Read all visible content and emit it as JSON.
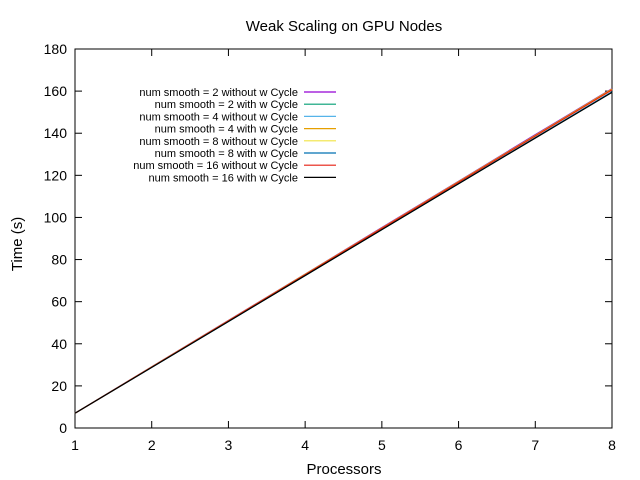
{
  "chart_data": {
    "type": "line",
    "title": "Weak Scaling on GPU Nodes",
    "xlabel": "Processors",
    "ylabel": "Time (s)",
    "xlim": [
      1,
      8
    ],
    "ylim": [
      0,
      180
    ],
    "xticks": [
      1,
      2,
      3,
      4,
      5,
      6,
      7,
      8
    ],
    "yticks": [
      0,
      20,
      40,
      60,
      80,
      100,
      120,
      140,
      160,
      180
    ],
    "grid": false,
    "legend_position": "top-left",
    "x": [
      1,
      2,
      3,
      4,
      5,
      6,
      7,
      8
    ],
    "series": [
      {
        "name": "num smooth = 2 without w Cycle",
        "color": "#9400d3",
        "values": [
          7.0,
          29.1,
          51.1,
          73.1,
          95.2,
          117.2,
          139.3,
          161.2
        ]
      },
      {
        "name": "num smooth = 2 with w Cycle",
        "color": "#009e73",
        "values": [
          7.0,
          28.8,
          50.6,
          72.4,
          94.2,
          116.0,
          137.8,
          159.5
        ]
      },
      {
        "name": "num smooth = 4 without w Cycle",
        "color": "#56b4e9",
        "values": [
          7.0,
          29.0,
          51.0,
          73.0,
          95.0,
          117.0,
          139.0,
          161.0
        ]
      },
      {
        "name": "num smooth = 4 with w Cycle",
        "color": "#e69f00",
        "values": [
          7.0,
          29.0,
          51.0,
          73.0,
          95.0,
          117.0,
          139.0,
          161.0
        ]
      },
      {
        "name": "num smooth = 8 without w Cycle",
        "color": "#f0e442",
        "values": [
          7.0,
          28.9,
          50.9,
          72.8,
          94.8,
          116.7,
          138.7,
          160.6
        ]
      },
      {
        "name": "num smooth = 8 with w Cycle",
        "color": "#0072b2",
        "values": [
          7.0,
          28.8,
          50.6,
          72.5,
          94.3,
          116.1,
          137.9,
          159.7
        ]
      },
      {
        "name": "num smooth = 16 without w Cycle",
        "color": "#e51e10",
        "values": [
          7.0,
          28.9,
          50.9,
          72.8,
          94.8,
          116.7,
          138.7,
          160.6
        ]
      },
      {
        "name": "num smooth = 16 with w Cycle",
        "color": "#000000",
        "values": [
          7.0,
          28.8,
          50.6,
          72.4,
          94.2,
          116.0,
          137.7,
          159.4
        ]
      }
    ]
  }
}
